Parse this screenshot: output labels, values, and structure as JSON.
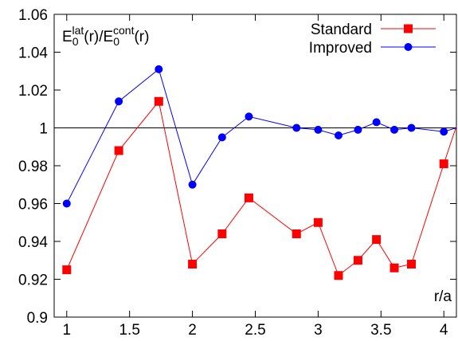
{
  "chart_data": {
    "type": "line",
    "ylabel": {
      "parts": [
        {
          "text": "E",
          "kind": "base"
        },
        {
          "text": "0",
          "kind": "sub"
        },
        {
          "text": "lat",
          "kind": "sup"
        },
        {
          "text": "(r)/E",
          "kind": "base"
        },
        {
          "text": "0",
          "kind": "sub"
        },
        {
          "text": "cont",
          "kind": "sup"
        },
        {
          "text": "(r)",
          "kind": "base"
        }
      ]
    },
    "xlabel": "r/a",
    "xlim": [
      0.9,
      4.1
    ],
    "ylim": [
      0.9,
      1.06
    ],
    "xticks": [
      1,
      1.5,
      2,
      2.5,
      3,
      3.5,
      4
    ],
    "xtick_labels": [
      "1",
      "1.5",
      "2",
      "2.5",
      "3",
      "3.5",
      "4"
    ],
    "yticks": [
      0.9,
      0.92,
      0.94,
      0.96,
      0.98,
      1,
      1.02,
      1.04,
      1.06
    ],
    "ytick_labels": [
      "0.9",
      "0.92",
      "0.94",
      "0.96",
      "0.98",
      "1",
      "1.02",
      "1.04",
      "1.06"
    ],
    "reference_line": 1,
    "grid": false,
    "legend_position": "top-right",
    "series": [
      {
        "name": "Standard",
        "color": "#ff0000",
        "marker": "square",
        "x": [
          1,
          1.414,
          1.732,
          2,
          2.236,
          2.449,
          2.828,
          3,
          3.162,
          3.317,
          3.464,
          3.606,
          3.742,
          4
        ],
        "y": [
          0.925,
          0.988,
          1.014,
          0.928,
          0.944,
          0.963,
          0.944,
          0.95,
          0.922,
          0.93,
          0.941,
          0.926,
          0.928,
          0.981
        ],
        "y_end": 1.001
      },
      {
        "name": "Improved",
        "color": "#0000ff",
        "marker": "circle",
        "x": [
          1,
          1.414,
          1.732,
          2,
          2.236,
          2.449,
          2.828,
          3,
          3.162,
          3.317,
          3.464,
          3.606,
          3.742,
          4
        ],
        "y": [
          0.96,
          1.014,
          1.031,
          0.97,
          0.995,
          1.006,
          1.0,
          0.999,
          0.996,
          0.999,
          1.003,
          0.999,
          1.0,
          0.998
        ],
        "y_end": 1.0
      }
    ]
  }
}
